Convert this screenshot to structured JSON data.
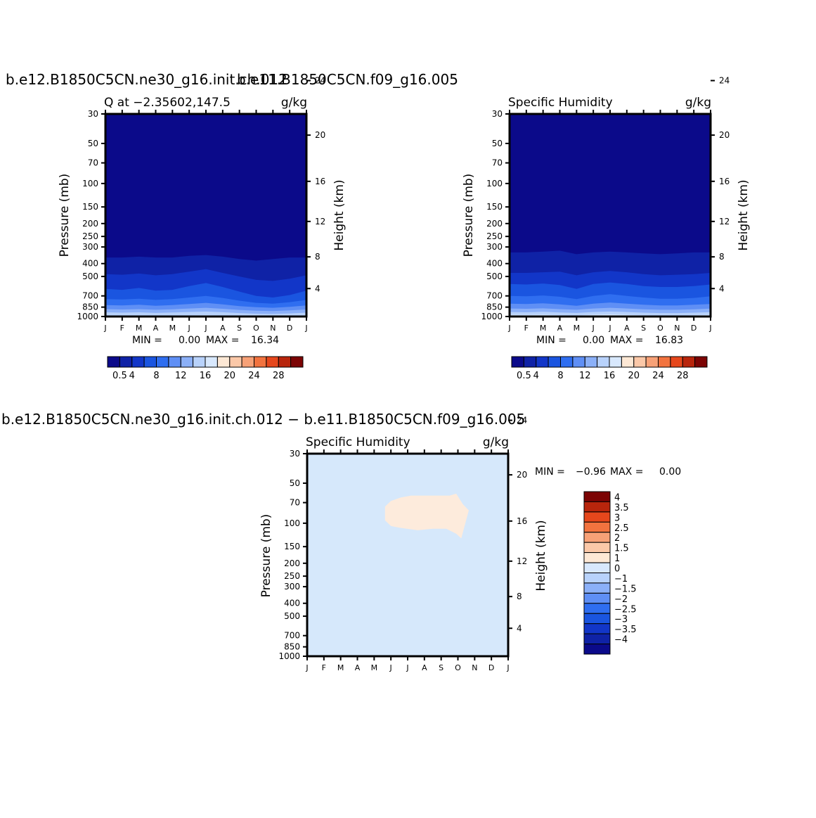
{
  "panels": [
    {
      "case_title": "b.e12.B1850C5CN.ne30_g16.init.ch.012",
      "left_title": "Q at −2.35602,147.5",
      "units": "g/kg",
      "min_label": "MIN =",
      "min_value": "0.00",
      "max_label": "MAX =",
      "max_value": "16.34",
      "colorbar_labels": [
        "0.5",
        "4",
        "8",
        "12",
        "16",
        "20",
        "24",
        "28"
      ]
    },
    {
      "case_title": "b.e11.B1850C5CN.f09_g16.005",
      "left_title": "Specific Humidity",
      "units": "g/kg",
      "min_label": "MIN =",
      "min_value": "0.00",
      "max_label": "MAX =",
      "max_value": "16.83",
      "colorbar_labels": [
        "0.5",
        "4",
        "8",
        "12",
        "16",
        "20",
        "24",
        "28"
      ]
    },
    {
      "case_title": "b.e12.B1850C5CN.ne30_g16.init.ch.012 − b.e11.B1850C5CN.f09_g16.005",
      "left_title": "Specific Humidity",
      "units": "g/kg",
      "min_label": "MIN =",
      "min_value": "−0.96",
      "max_label": "MAX =",
      "max_value": "0.00",
      "colorbar_labels": [
        "4",
        "3.5",
        "3",
        "2.5",
        "2",
        "1.5",
        "1",
        "0",
        "−1",
        "−1.5",
        "−2",
        "−2.5",
        "−3",
        "−3.5",
        "−4"
      ]
    }
  ],
  "axes": {
    "ylabel": "Pressure (mb)",
    "ylabel_right": "Height (km)",
    "pressure_ticks": [
      "30",
      "50",
      "70",
      "100",
      "150",
      "200",
      "250",
      "300",
      "400",
      "500",
      "700",
      "850",
      "1000"
    ],
    "height_ticks": [
      "24",
      "20",
      "16",
      "12",
      "8",
      "4"
    ],
    "month_ticks": [
      "J",
      "F",
      "M",
      "A",
      "M",
      "J",
      "J",
      "A",
      "S",
      "O",
      "N",
      "D",
      "J"
    ]
  },
  "chart_data": [
    {
      "type": "heatmap",
      "panel": 0,
      "x": [
        "J",
        "F",
        "M",
        "A",
        "M",
        "J",
        "J",
        "A",
        "S",
        "O",
        "N",
        "D",
        "J"
      ],
      "y": [
        30,
        50,
        70,
        100,
        150,
        200,
        250,
        300,
        400,
        500,
        700,
        850,
        1000
      ],
      "z_units": "g/kg",
      "contour_levels": [
        0.5,
        2,
        4,
        6,
        8,
        10,
        12,
        14,
        16,
        18,
        20,
        22,
        24,
        26,
        28
      ],
      "z_min": 0.0,
      "z_max": 16.34,
      "bands": [
        {
          "level": 2,
          "p": [
            360,
            360,
            355,
            360,
            360,
            350,
            345,
            355,
            370,
            380,
            370,
            360,
            360
          ]
        },
        {
          "level": 4,
          "p": [
            480,
            485,
            475,
            490,
            480,
            460,
            440,
            470,
            500,
            530,
            540,
            520,
            490
          ]
        },
        {
          "level": 6,
          "p": [
            620,
            630,
            610,
            640,
            630,
            590,
            560,
            600,
            650,
            700,
            720,
            690,
            640
          ]
        },
        {
          "level": 8,
          "p": [
            740,
            745,
            735,
            750,
            740,
            720,
            700,
            725,
            760,
            790,
            800,
            780,
            750
          ]
        },
        {
          "level": 10,
          "p": [
            820,
            825,
            815,
            830,
            820,
            805,
            790,
            810,
            835,
            850,
            860,
            845,
            825
          ]
        },
        {
          "level": 12,
          "p": [
            880,
            885,
            880,
            890,
            882,
            870,
            860,
            875,
            892,
            905,
            910,
            900,
            885
          ]
        },
        {
          "level": 14,
          "p": [
            930,
            935,
            930,
            940,
            932,
            925,
            918,
            928,
            942,
            952,
            956,
            948,
            935
          ]
        },
        {
          "level": 16,
          "p": [
            985,
            990,
            985,
            990,
            988,
            982,
            978,
            984,
            990,
            995,
            995,
            992,
            988
          ]
        }
      ]
    },
    {
      "type": "heatmap",
      "panel": 1,
      "x": [
        "J",
        "F",
        "M",
        "A",
        "M",
        "J",
        "J",
        "A",
        "S",
        "O",
        "N",
        "D",
        "J"
      ],
      "y": [
        30,
        50,
        70,
        100,
        150,
        200,
        250,
        300,
        400,
        500,
        700,
        850,
        1000
      ],
      "z_units": "g/kg",
      "contour_levels": [
        0.5,
        2,
        4,
        6,
        8,
        10,
        12,
        14,
        16,
        18,
        20,
        22,
        24,
        26,
        28
      ],
      "z_min": 0.0,
      "z_max": 16.83,
      "bands": [
        {
          "level": 2,
          "p": [
            330,
            330,
            325,
            320,
            340,
            330,
            325,
            330,
            335,
            340,
            335,
            330,
            330
          ]
        },
        {
          "level": 4,
          "p": [
            470,
            470,
            465,
            460,
            490,
            465,
            455,
            465,
            480,
            490,
            485,
            480,
            470
          ]
        },
        {
          "level": 6,
          "p": [
            570,
            575,
            565,
            580,
            620,
            570,
            555,
            570,
            590,
            600,
            600,
            590,
            575
          ]
        },
        {
          "level": 8,
          "p": [
            700,
            705,
            695,
            710,
            740,
            700,
            680,
            700,
            720,
            735,
            735,
            725,
            705
          ]
        },
        {
          "level": 10,
          "p": [
            800,
            805,
            795,
            810,
            830,
            800,
            785,
            800,
            815,
            825,
            825,
            815,
            805
          ]
        },
        {
          "level": 12,
          "p": [
            870,
            875,
            868,
            880,
            890,
            870,
            860,
            870,
            882,
            890,
            890,
            882,
            872
          ]
        },
        {
          "level": 14,
          "p": [
            925,
            930,
            922,
            932,
            940,
            925,
            918,
            925,
            935,
            942,
            942,
            935,
            928
          ]
        },
        {
          "level": 16,
          "p": [
            970,
            975,
            970,
            978,
            982,
            970,
            965,
            972,
            980,
            985,
            985,
            980,
            974
          ]
        }
      ]
    },
    {
      "type": "heatmap",
      "panel": 2,
      "x": [
        "J",
        "F",
        "M",
        "A",
        "M",
        "J",
        "J",
        "A",
        "S",
        "O",
        "N",
        "D",
        "J"
      ],
      "y": [
        30,
        50,
        70,
        100,
        150,
        200,
        250,
        300,
        400,
        500,
        700,
        850,
        1000
      ],
      "z_units": "g/kg",
      "contour_levels": [
        -4,
        -3.5,
        -3,
        -2.5,
        -2,
        -1.5,
        -1,
        0,
        1,
        1.5,
        2,
        2.5,
        3,
        3.5,
        4
      ],
      "z_min": -0.96,
      "z_max": 0.0,
      "background_level_range": [
        -1,
        0
      ],
      "region": {
        "level_range": [
          0,
          1
        ],
        "polygon_xm": [
          4.65,
          5.0,
          5.6,
          6.2,
          7.0,
          8.0,
          8.5,
          8.9,
          9.3,
          9.65,
          9.2,
          8.9,
          8.3,
          7.5,
          6.6,
          5.5,
          5.0,
          4.65
        ],
        "polygon_p": [
          75,
          68,
          64,
          62,
          62,
          62,
          62,
          60,
          72,
          80,
          130,
          120,
          110,
          110,
          113,
          108,
          105,
          95
        ]
      }
    }
  ],
  "colors": {
    "seq": [
      "#0b0a8a",
      "#0f22a6",
      "#1236c8",
      "#1a55e0",
      "#2f6ef0",
      "#5f8ff5",
      "#8bb0f8",
      "#b8d2fb",
      "#d8e8fd",
      "#fde8d5",
      "#fbc8a8",
      "#f7a177",
      "#f2733f",
      "#e6471c",
      "#b8250c",
      "#7c0404"
    ],
    "diff": [
      "#7c0404",
      "#b8250c",
      "#e6471c",
      "#f2733f",
      "#f7a177",
      "#fbc8a8",
      "#fde8d5",
      "#d8e8fd",
      "#b8d2fb",
      "#8bb0f8",
      "#5f8ff5",
      "#2f6ef0",
      "#1a55e0",
      "#1236c8",
      "#0f22a6",
      "#0b0a8a"
    ],
    "diff_bg": "#d6e8fb",
    "diff_region": "#fdebdc"
  }
}
